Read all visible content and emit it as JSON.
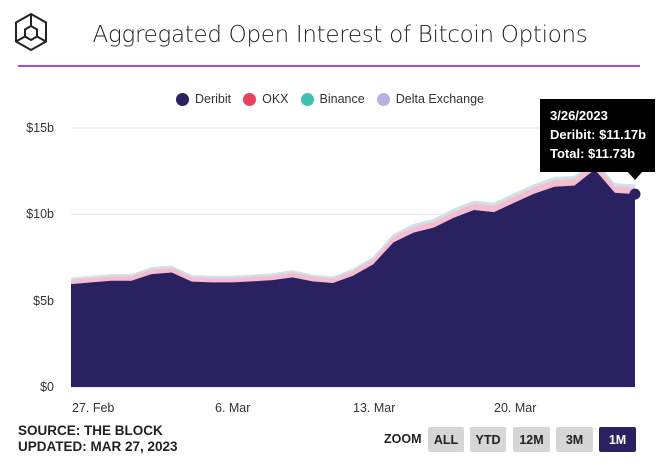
{
  "header": {
    "title": "Aggregated Open Interest of Bitcoin Options",
    "logo": "the-block-cube-logo"
  },
  "footer": {
    "source": "SOURCE: THE BLOCK",
    "updated": "UPDATED: MAR 27, 2023"
  },
  "zoom": {
    "label": "ZOOM",
    "buttons": [
      "ALL",
      "YTD",
      "12M",
      "3M",
      "1M"
    ],
    "active": "1M"
  },
  "tooltip": {
    "date": "3/26/2023",
    "line1": "Deribit: $11.17b",
    "line2": "Total: $11.73b"
  },
  "colors": {
    "accent_rule": "#a74ed6",
    "Deribit": "#2a2160",
    "OKX": "#e8415f",
    "Binance": "#3ec1b0",
    "Delta Exchange": "#b9b0e2"
  },
  "chart_data": {
    "type": "area",
    "stacked": true,
    "title": "Aggregated Open Interest of Bitcoin Options",
    "xlabel": "",
    "ylabel": "",
    "x_start": "2023-02-26",
    "x_end": "2023-03-26",
    "x_interval": "1 day",
    "x_ticks": [
      "27. Feb",
      "6. Mar",
      "13. Mar",
      "20. Mar"
    ],
    "y_ticks": [
      "$0",
      "$5b",
      "$10b",
      "$15b"
    ],
    "ylim": [
      0,
      15
    ],
    "y_unit": "$b",
    "grid": true,
    "legend": "top-center",
    "series": [
      {
        "name": "Deribit",
        "values": [
          5.96,
          6.06,
          6.15,
          6.15,
          6.54,
          6.63,
          6.1,
          6.06,
          6.06,
          6.12,
          6.19,
          6.35,
          6.12,
          6.02,
          6.44,
          7.1,
          8.37,
          8.94,
          9.23,
          9.8,
          10.25,
          10.13,
          10.67,
          11.2,
          11.6,
          11.67,
          12.6,
          11.25,
          11.17
        ]
      },
      {
        "name": "OKX",
        "values": [
          0.25,
          0.26,
          0.26,
          0.27,
          0.28,
          0.28,
          0.26,
          0.26,
          0.26,
          0.27,
          0.27,
          0.28,
          0.27,
          0.26,
          0.28,
          0.3,
          0.33,
          0.34,
          0.35,
          0.36,
          0.37,
          0.37,
          0.37,
          0.38,
          0.38,
          0.38,
          0.4,
          0.38,
          0.38
        ]
      },
      {
        "name": "Binance",
        "values": [
          0.08,
          0.08,
          0.08,
          0.08,
          0.09,
          0.09,
          0.08,
          0.08,
          0.08,
          0.08,
          0.08,
          0.09,
          0.08,
          0.08,
          0.09,
          0.1,
          0.11,
          0.11,
          0.11,
          0.12,
          0.12,
          0.12,
          0.12,
          0.12,
          0.12,
          0.12,
          0.12,
          0.12,
          0.12
        ]
      },
      {
        "name": "Delta Exchange",
        "values": [
          0.04,
          0.04,
          0.04,
          0.04,
          0.04,
          0.04,
          0.04,
          0.04,
          0.04,
          0.04,
          0.04,
          0.04,
          0.04,
          0.04,
          0.04,
          0.05,
          0.05,
          0.05,
          0.05,
          0.05,
          0.06,
          0.06,
          0.06,
          0.06,
          0.06,
          0.06,
          0.06,
          0.06,
          0.06
        ]
      }
    ]
  }
}
